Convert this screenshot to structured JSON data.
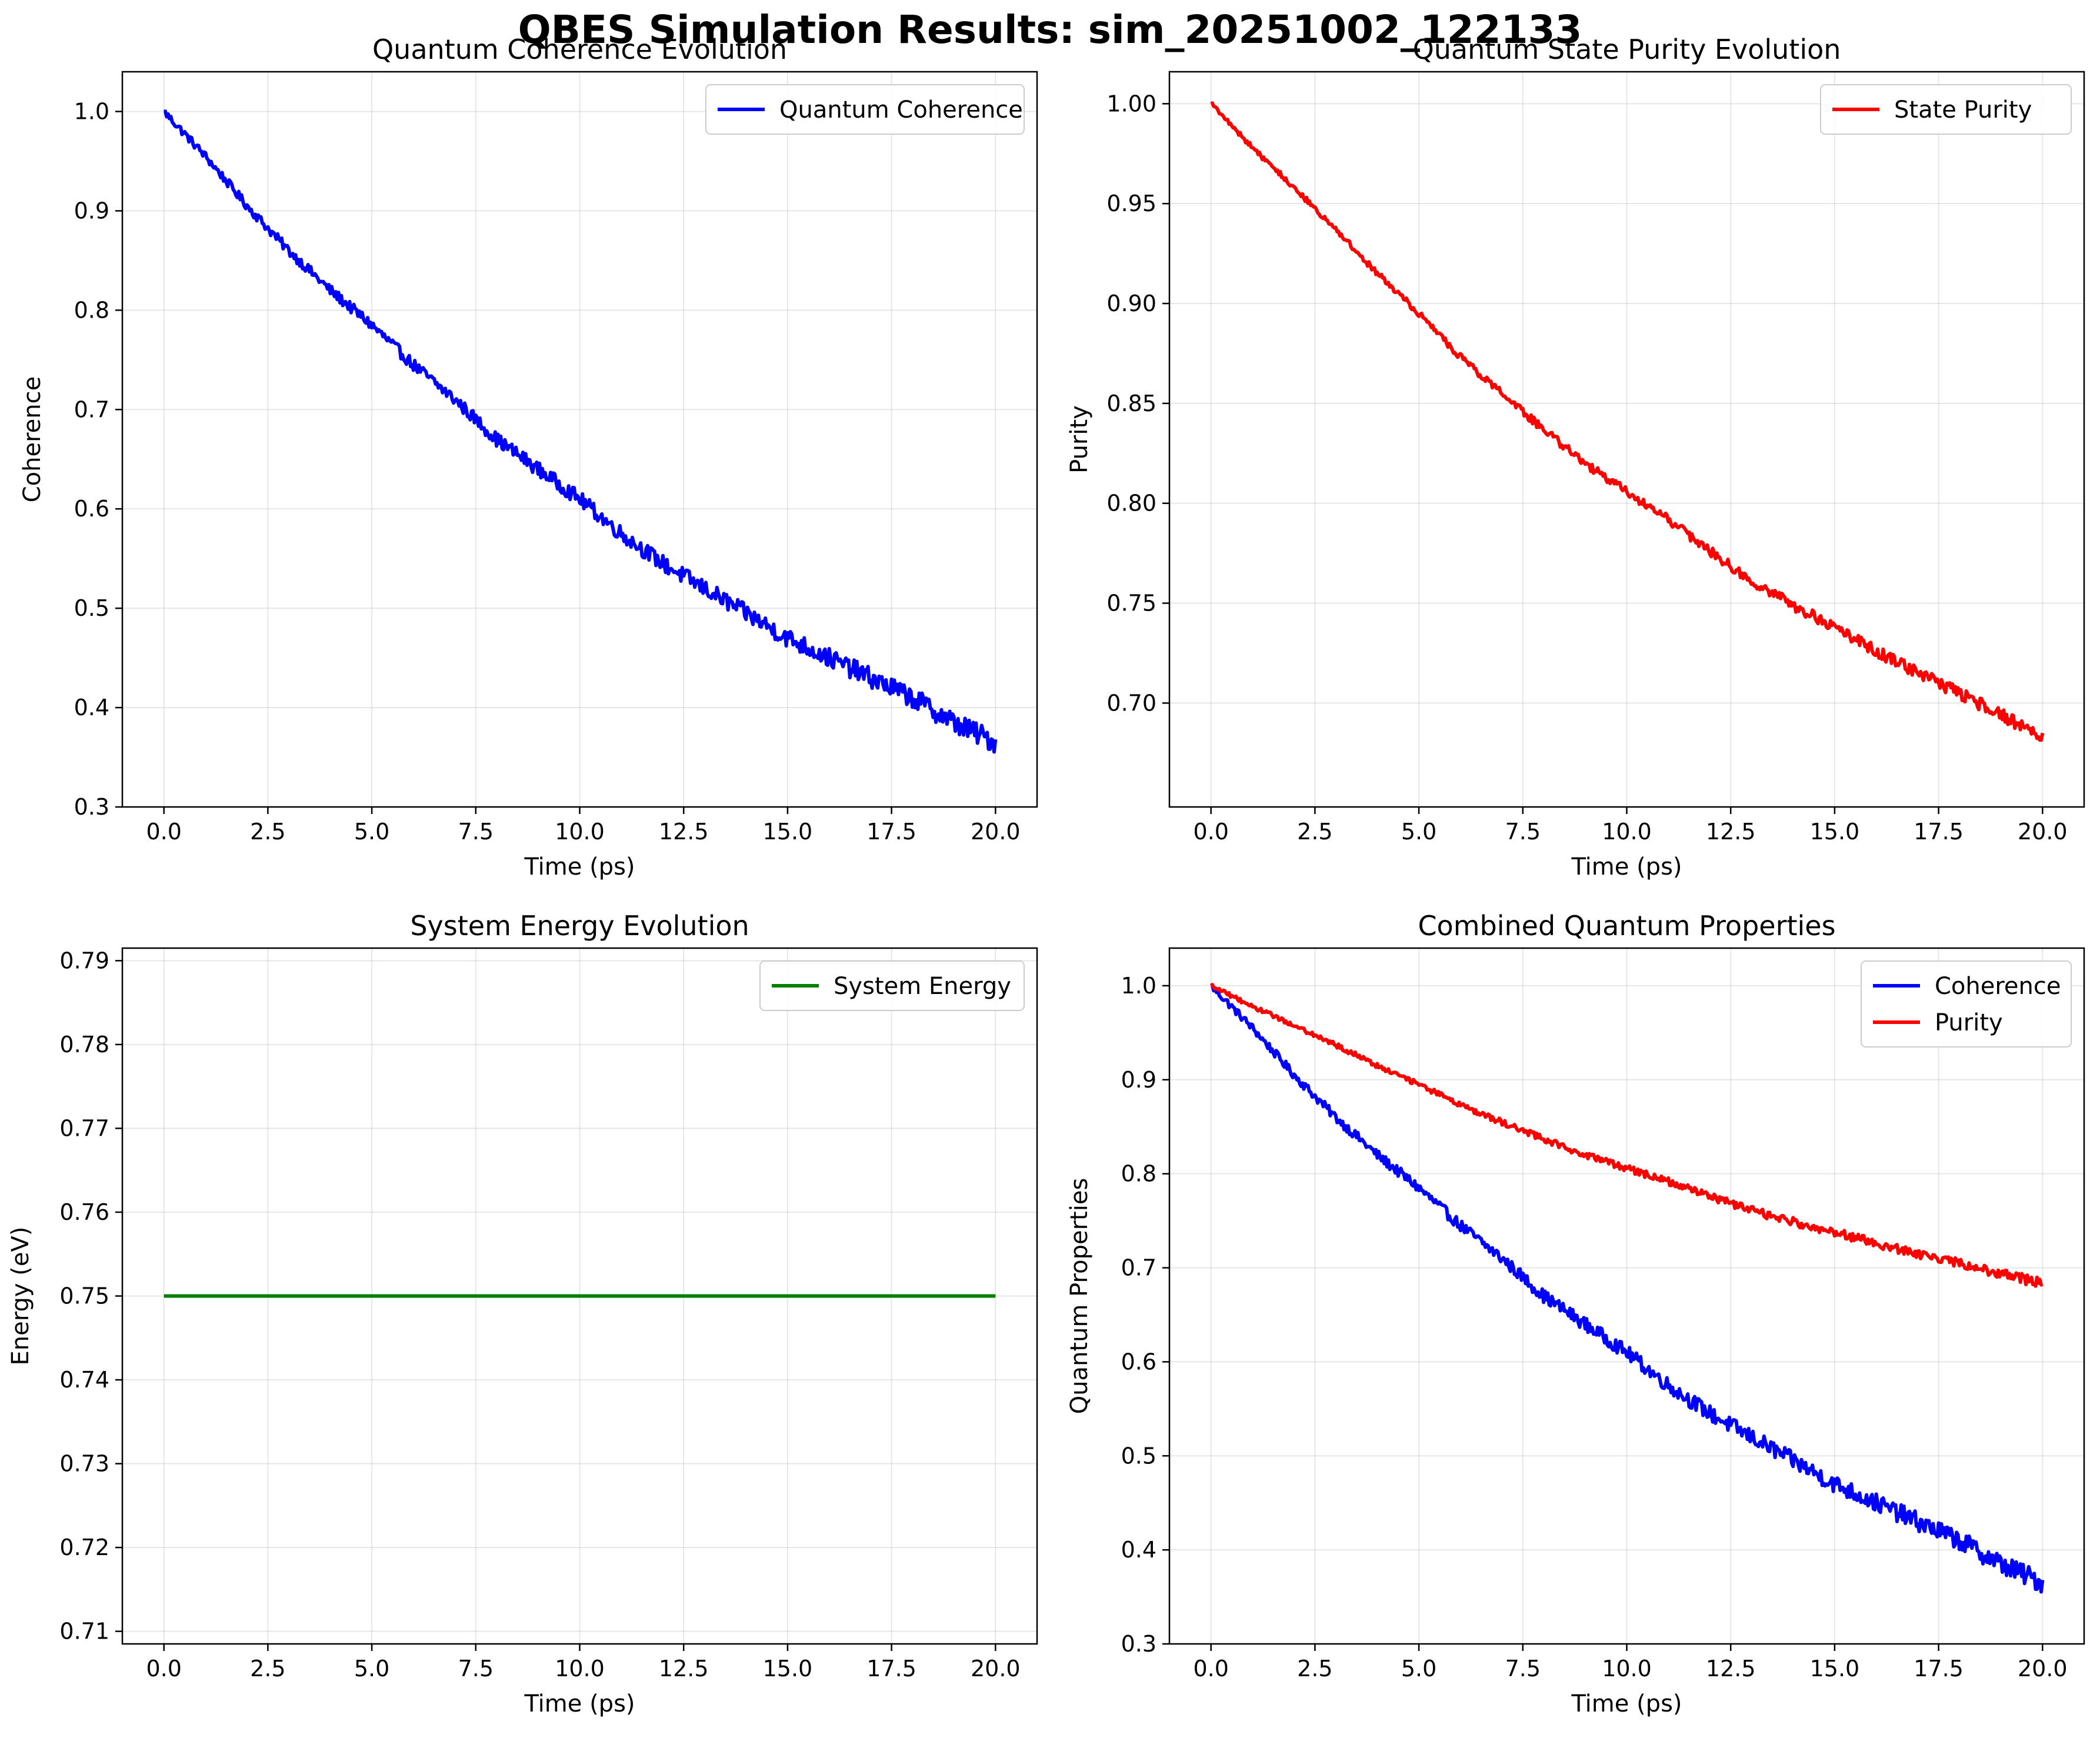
{
  "figure": {
    "title": "QBES Simulation Results: sim_20251002_122133"
  },
  "chart_data": [
    {
      "type": "line",
      "title": "Quantum Coherence Evolution",
      "xlabel": "Time (ps)",
      "ylabel": "Coherence",
      "xlim": [
        -1.0,
        21.0
      ],
      "ylim": [
        0.3,
        1.04
      ],
      "xticks": [
        0.0,
        2.5,
        5.0,
        7.5,
        10.0,
        12.5,
        15.0,
        17.5,
        20.0
      ],
      "xtick_labels": [
        "0.0",
        "2.5",
        "5.0",
        "7.5",
        "10.0",
        "12.5",
        "15.0",
        "17.5",
        "20.0"
      ],
      "yticks": [
        0.3,
        0.4,
        0.5,
        0.6,
        0.7,
        0.8,
        0.9,
        1.0
      ],
      "ytick_labels": [
        "0.3",
        "0.4",
        "0.5",
        "0.6",
        "0.7",
        "0.8",
        "0.9",
        "1.0"
      ],
      "grid": true,
      "legend": "upper right",
      "series": [
        {
          "name": "Quantum Coherence",
          "color": "#0000ff",
          "x": [
            0,
            1,
            2,
            3,
            4,
            5,
            6,
            7,
            8,
            9,
            10,
            11,
            12,
            13,
            14,
            15,
            16,
            17,
            18,
            19,
            20
          ],
          "y": [
            1.0,
            0.955,
            0.905,
            0.86,
            0.82,
            0.785,
            0.745,
            0.71,
            0.67,
            0.64,
            0.61,
            0.575,
            0.545,
            0.52,
            0.495,
            0.47,
            0.45,
            0.43,
            0.41,
            0.385,
            0.365
          ]
        }
      ]
    },
    {
      "type": "line",
      "title": "Quantum State Purity Evolution",
      "xlabel": "Time (ps)",
      "ylabel": "Purity",
      "xlim": [
        -1.0,
        21.0
      ],
      "ylim": [
        0.648,
        1.016
      ],
      "xticks": [
        0.0,
        2.5,
        5.0,
        7.5,
        10.0,
        12.5,
        15.0,
        17.5,
        20.0
      ],
      "xtick_labels": [
        "0.0",
        "2.5",
        "5.0",
        "7.5",
        "10.0",
        "12.5",
        "15.0",
        "17.5",
        "20.0"
      ],
      "yticks": [
        0.7,
        0.75,
        0.8,
        0.85,
        0.9,
        0.95,
        1.0
      ],
      "ytick_labels": [
        "0.70",
        "0.75",
        "0.80",
        "0.85",
        "0.90",
        "0.95",
        "1.00"
      ],
      "grid": true,
      "legend": "upper right",
      "series": [
        {
          "name": "State Purity",
          "color": "#ff0000",
          "x": [
            0,
            1,
            2,
            3,
            4,
            5,
            6,
            7,
            8,
            9,
            10,
            11,
            12,
            13,
            14,
            15,
            16,
            17,
            18,
            19,
            20
          ],
          "y": [
            1.0,
            0.978,
            0.958,
            0.937,
            0.915,
            0.895,
            0.873,
            0.855,
            0.837,
            0.82,
            0.806,
            0.792,
            0.776,
            0.761,
            0.749,
            0.738,
            0.726,
            0.715,
            0.705,
            0.694,
            0.683
          ]
        }
      ]
    },
    {
      "type": "line",
      "title": "System Energy Evolution",
      "xlabel": "Time (ps)",
      "ylabel": "Energy (eV)",
      "xlim": [
        -1.0,
        21.0
      ],
      "ylim": [
        0.7085,
        0.7915
      ],
      "xticks": [
        0.0,
        2.5,
        5.0,
        7.5,
        10.0,
        12.5,
        15.0,
        17.5,
        20.0
      ],
      "xtick_labels": [
        "0.0",
        "2.5",
        "5.0",
        "7.5",
        "10.0",
        "12.5",
        "15.0",
        "17.5",
        "20.0"
      ],
      "yticks": [
        0.71,
        0.72,
        0.73,
        0.74,
        0.75,
        0.76,
        0.77,
        0.78,
        0.79
      ],
      "ytick_labels": [
        "0.71",
        "0.72",
        "0.73",
        "0.74",
        "0.75",
        "0.76",
        "0.77",
        "0.78",
        "0.79"
      ],
      "grid": true,
      "legend": "upper right",
      "series": [
        {
          "name": "System Energy",
          "color": "#008000",
          "x": [
            0,
            20
          ],
          "y": [
            0.75,
            0.75
          ]
        }
      ]
    },
    {
      "type": "line",
      "title": "Combined Quantum Properties",
      "xlabel": "Time (ps)",
      "ylabel": "Quantum Properties",
      "xlim": [
        -1.0,
        21.0
      ],
      "ylim": [
        0.3,
        1.04
      ],
      "xticks": [
        0.0,
        2.5,
        5.0,
        7.5,
        10.0,
        12.5,
        15.0,
        17.5,
        20.0
      ],
      "xtick_labels": [
        "0.0",
        "2.5",
        "5.0",
        "7.5",
        "10.0",
        "12.5",
        "15.0",
        "17.5",
        "20.0"
      ],
      "yticks": [
        0.3,
        0.4,
        0.5,
        0.6,
        0.7,
        0.8,
        0.9,
        1.0
      ],
      "ytick_labels": [
        "0.3",
        "0.4",
        "0.5",
        "0.6",
        "0.7",
        "0.8",
        "0.9",
        "1.0"
      ],
      "grid": true,
      "legend": "upper right",
      "series": [
        {
          "name": "Coherence",
          "color": "#0000ff",
          "x": [
            0,
            1,
            2,
            3,
            4,
            5,
            6,
            7,
            8,
            9,
            10,
            11,
            12,
            13,
            14,
            15,
            16,
            17,
            18,
            19,
            20
          ],
          "y": [
            1.0,
            0.955,
            0.905,
            0.86,
            0.82,
            0.785,
            0.745,
            0.71,
            0.67,
            0.64,
            0.61,
            0.575,
            0.545,
            0.52,
            0.495,
            0.47,
            0.45,
            0.43,
            0.41,
            0.385,
            0.365
          ]
        },
        {
          "name": "Purity",
          "color": "#ff0000",
          "x": [
            0,
            1,
            2,
            3,
            4,
            5,
            6,
            7,
            8,
            9,
            10,
            11,
            12,
            13,
            14,
            15,
            16,
            17,
            18,
            19,
            20
          ],
          "y": [
            1.0,
            0.978,
            0.958,
            0.937,
            0.915,
            0.895,
            0.873,
            0.855,
            0.837,
            0.82,
            0.806,
            0.792,
            0.776,
            0.761,
            0.749,
            0.738,
            0.726,
            0.715,
            0.705,
            0.694,
            0.683
          ]
        }
      ]
    }
  ]
}
